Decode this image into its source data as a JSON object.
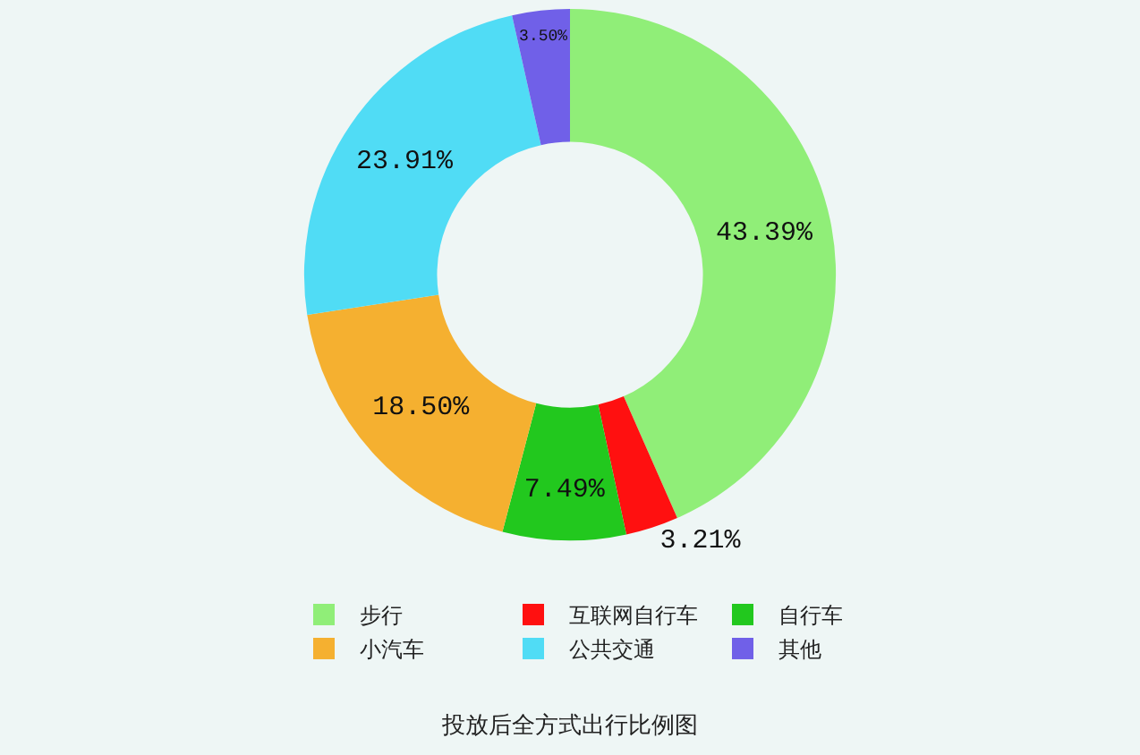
{
  "chart_data": {
    "type": "donut",
    "title": "投放后全方式出行比例图",
    "categories": [
      "步行",
      "互联网自行车",
      "自行车",
      "小汽车",
      "公共交通",
      "其他"
    ],
    "values": [
      43.39,
      3.21,
      7.49,
      18.5,
      23.91,
      3.5
    ],
    "colors": [
      "#90ee78",
      "#ff1010",
      "#22c81e",
      "#f5b030",
      "#50dcf5",
      "#7060e8"
    ],
    "value_labels": [
      "43.39%",
      "3.21%",
      "7.49%",
      "18.50%",
      "23.91%",
      "3.50%"
    ],
    "legend": "bottom"
  }
}
